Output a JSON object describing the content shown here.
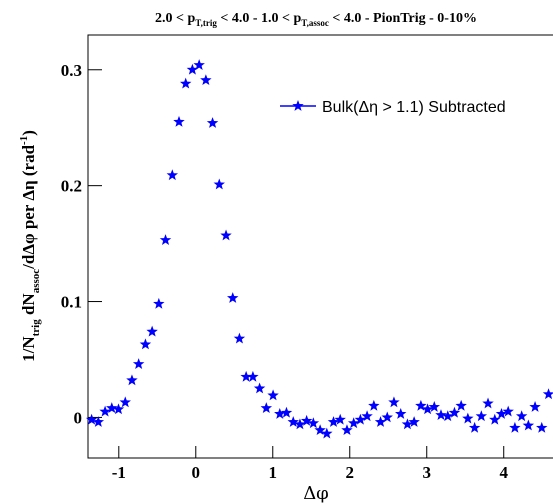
{
  "chart_data": {
    "type": "scatter",
    "title_parts": [
      "2.0 < p",
      "T,trig",
      " < 4.0 - 1.0 < p",
      "T,assoc",
      " < 4.0 - PionTrig - 0-10%"
    ],
    "x_label": "Δφ",
    "y_label_parts": [
      "1/N",
      "trig",
      " dN",
      "assoc",
      "/dΔφ per  Δη (rad",
      "-1",
      ")"
    ],
    "xlim": [
      -1.4,
      4.64
    ],
    "ylim": [
      -0.035,
      0.33
    ],
    "xticks": [
      -1,
      0,
      1,
      2,
      3,
      4
    ],
    "yticks": [
      0,
      0.1,
      0.2,
      0.3
    ],
    "legend": "upper right",
    "series": [
      {
        "name": "Bulk(Δη > 1.1) Subtracted",
        "color": "#0000ff",
        "x": [
          -1.353,
          -1.266,
          -1.178,
          -1.091,
          -1.004,
          -0.916,
          -0.829,
          -0.742,
          -0.654,
          -0.567,
          -0.48,
          -0.393,
          -0.305,
          -0.218,
          -0.131,
          -0.044,
          0.044,
          0.131,
          0.218,
          0.305,
          0.393,
          0.48,
          0.567,
          0.654,
          0.742,
          0.829,
          0.916,
          1.004,
          1.091,
          1.178,
          1.266,
          1.353,
          1.44,
          1.527,
          1.615,
          1.702,
          1.789,
          1.876,
          1.964,
          2.051,
          2.138,
          2.225,
          2.313,
          2.4,
          2.487,
          2.574,
          2.662,
          2.749,
          2.836,
          2.924,
          3.011,
          3.098,
          3.185,
          3.273,
          3.36,
          3.447,
          3.534,
          3.622,
          3.709,
          3.796,
          3.884,
          3.971,
          4.058,
          4.145,
          4.233,
          4.32,
          4.407,
          4.494,
          4.582
        ],
        "values": [
          -0.002,
          -0.004,
          0.005,
          0.008,
          0.007,
          0.013,
          0.032,
          0.046,
          0.063,
          0.074,
          0.098,
          0.153,
          0.209,
          0.255,
          0.288,
          0.3,
          0.304,
          0.291,
          0.254,
          0.201,
          0.157,
          0.103,
          0.068,
          0.035,
          0.035,
          0.025,
          0.008,
          0.019,
          0.003,
          0.004,
          -0.004,
          -0.006,
          -0.003,
          -0.005,
          -0.011,
          -0.014,
          -0.004,
          -0.002,
          -0.011,
          -0.005,
          -0.002,
          0.001,
          0.01,
          -0.004,
          0.0,
          0.013,
          0.003,
          -0.006,
          -0.004,
          0.01,
          0.007,
          0.009,
          0.002,
          0.001,
          0.004,
          0.01,
          -0.001,
          -0.009,
          0.001,
          0.012,
          -0.002,
          0.003,
          0.005,
          -0.009,
          0.001,
          -0.007,
          0.009,
          -0.009,
          0.02
        ]
      }
    ]
  }
}
